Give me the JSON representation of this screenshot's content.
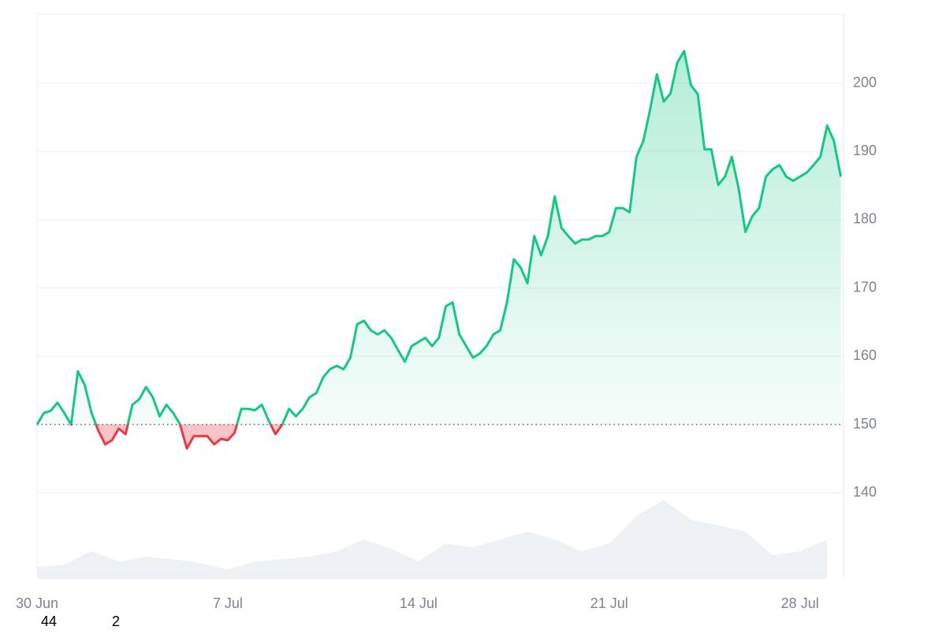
{
  "chart_data": {
    "type": "baseline-line",
    "x": [
      0,
      0.25,
      0.5,
      0.75,
      1,
      1.25,
      1.5,
      1.75,
      2,
      2.25,
      2.5,
      2.75,
      3,
      3.25,
      3.5,
      3.75,
      4,
      4.25,
      4.5,
      4.75,
      5,
      5.25,
      5.5,
      5.75,
      6,
      6.25,
      6.5,
      6.75,
      7,
      7.25,
      7.5,
      7.75,
      8,
      8.25,
      8.5,
      8.75,
      9,
      9.25,
      9.5,
      9.75,
      10,
      10.25,
      10.5,
      10.75,
      11,
      11.25,
      11.5,
      11.75,
      12,
      12.25,
      12.5,
      12.75,
      13,
      13.25,
      13.5,
      13.75,
      14,
      14.25,
      14.5,
      14.75,
      15,
      15.25,
      15.5,
      15.75,
      16,
      16.25,
      16.5,
      16.75,
      17,
      17.25,
      17.5,
      17.75,
      18,
      18.25,
      18.5,
      18.75,
      19,
      19.25,
      19.5,
      19.75,
      20,
      20.25,
      20.5,
      20.75,
      21,
      21.25,
      21.5,
      21.75,
      22,
      22.25,
      22.5,
      22.75,
      23,
      23.25,
      23.5,
      23.75,
      24,
      24.25,
      24.5,
      24.75,
      25,
      25.25,
      25.5,
      25.75,
      26,
      26.25,
      26.5,
      26.75,
      27,
      27.25,
      27.5,
      27.75,
      28,
      28.25,
      28.5,
      28.75,
      29,
      29.25,
      29.5
    ],
    "values": [
      150,
      151.7,
      152,
      153.2,
      151.7,
      150,
      157.8,
      155.8,
      151.7,
      149.1,
      147.1,
      147.7,
      149.4,
      148.6,
      152.9,
      153.7,
      155.5,
      154,
      151.2,
      152.9,
      151.7,
      150,
      146.5,
      148.3,
      148.3,
      148.3,
      147.1,
      147.9,
      147.7,
      148.8,
      152.3,
      152.3,
      152.1,
      152.9,
      150.6,
      148.6,
      150,
      152.3,
      151.2,
      152.3,
      154,
      154.6,
      156.9,
      158.1,
      158.6,
      158.1,
      159.8,
      164.7,
      165.2,
      163.8,
      163.2,
      163.8,
      162.7,
      160.9,
      159.2,
      161.5,
      162.1,
      162.7,
      161.5,
      162.7,
      167.3,
      167.9,
      163.2,
      161.5,
      159.8,
      160.4,
      161.5,
      163.2,
      163.8,
      167.9,
      174.2,
      173,
      170.7,
      177.6,
      174.8,
      177.6,
      183.4,
      178.8,
      177.6,
      176.5,
      177.1,
      177.1,
      177.6,
      177.6,
      178.2,
      181.7,
      181.7,
      181.1,
      189.2,
      191.5,
      196.1,
      201.3,
      197.3,
      198.5,
      203,
      204.7,
      199.7,
      198.4,
      190.3,
      190.3,
      185.1,
      186.3,
      189.2,
      184.6,
      178.2,
      180.5,
      181.7,
      186.3,
      187.4,
      188,
      186.3,
      185.7,
      186.3,
      186.9,
      188,
      189.2,
      193.8,
      191.5,
      186.3
    ],
    "baseline": 150,
    "colors": {
      "up": "#16c784",
      "down": "#ea3943",
      "volume": "#eef1f4"
    },
    "xlim": [
      0,
      29.6
    ],
    "ylim": [
      127.4,
      210.1
    ],
    "yticks": [
      140,
      150,
      160,
      170,
      180,
      190,
      200
    ],
    "xticks": [
      {
        "value": 0,
        "label": "30 Jun"
      },
      {
        "value": 7,
        "label": "7 Jul"
      },
      {
        "value": 14,
        "label": "14 Jul"
      },
      {
        "value": 21,
        "label": "21 Jul"
      },
      {
        "value": 28,
        "label": "28 Jul"
      }
    ],
    "grid": true,
    "volume": {
      "x": [
        0,
        1,
        2,
        3,
        4,
        5,
        6,
        7,
        8,
        9,
        10,
        11,
        12,
        13,
        14,
        15,
        16,
        17,
        18,
        19,
        20,
        21,
        22,
        23,
        24,
        25,
        26,
        27,
        28,
        29
      ],
      "values": [
        15,
        18,
        35,
        22,
        28,
        25,
        20,
        12,
        22,
        25,
        28,
        35,
        50,
        38,
        22,
        45,
        40,
        50,
        60,
        50,
        35,
        45,
        80,
        100,
        75,
        68,
        60,
        30,
        35,
        50
      ]
    },
    "annotations": [
      "44",
      "2"
    ]
  }
}
